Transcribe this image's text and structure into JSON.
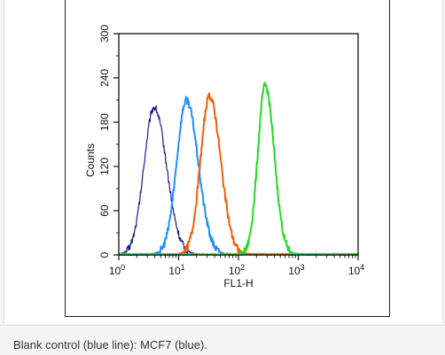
{
  "caption": "Blank control (blue line): MCF7 (blue).",
  "chart_data": {
    "type": "line",
    "xlabel": "FL1-H",
    "ylabel": "Counts",
    "xscale": "log",
    "xlim": [
      1,
      10000
    ],
    "ylim": [
      0,
      300
    ],
    "x_ticks": [
      {
        "value": 1,
        "base": "10",
        "exp": "0"
      },
      {
        "value": 10,
        "base": "10",
        "exp": "1"
      },
      {
        "value": 100,
        "base": "10",
        "exp": "2"
      },
      {
        "value": 1000,
        "base": "10",
        "exp": "3"
      },
      {
        "value": 10000,
        "base": "10",
        "exp": "4"
      }
    ],
    "y_ticks": [
      "0",
      "60",
      "120",
      "180",
      "240",
      "300"
    ],
    "y_tick_values": [
      0,
      60,
      120,
      180,
      240,
      300
    ],
    "grid": false,
    "series": [
      {
        "color": "#1a1a8c",
        "peak_x": 3.9,
        "peak_y": 200,
        "width": 0.18
      },
      {
        "color": "#1e90ff",
        "peak_x": 13.5,
        "peak_y": 210,
        "width": 0.17
      },
      {
        "color": "#f0600a",
        "peak_x": 33,
        "peak_y": 215,
        "width": 0.16
      },
      {
        "color": "#22dd22",
        "peak_x": 280,
        "peak_y": 230,
        "width": 0.13
      }
    ]
  }
}
